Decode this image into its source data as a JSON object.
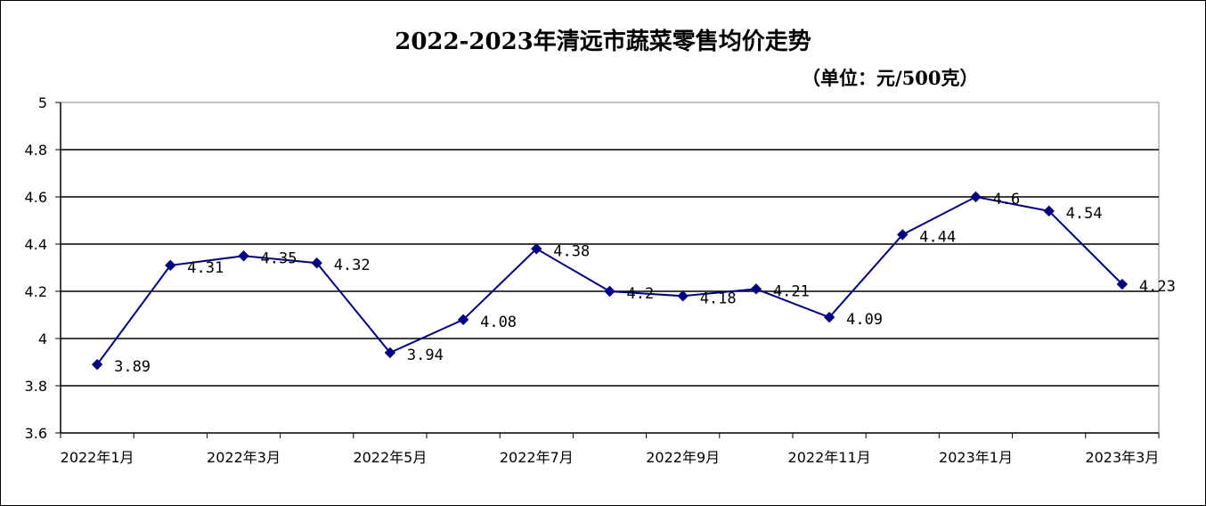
{
  "chart_data": {
    "type": "line",
    "title": "2022-2023年清远市蔬菜零售均价走势",
    "subtitle": "（单位：元/500克）",
    "ylim": [
      3.6,
      5
    ],
    "yticks": [
      "3.6",
      "3.8",
      "4",
      "4.2",
      "4.4",
      "4.6",
      "4.8",
      "5"
    ],
    "grid": true,
    "legend": "none",
    "xticks": [
      "2022年1月",
      "2022年3月",
      "2022年5月",
      "2022年7月",
      "2022年9月",
      "2022年11月",
      "2023年1月",
      "2023年3月"
    ],
    "x": [
      "2022年1月",
      "2022年2月",
      "2022年3月",
      "2022年4月",
      "2022年5月",
      "2022年6月",
      "2022年7月",
      "2022年8月",
      "2022年9月",
      "2022年10月",
      "2022年11月",
      "2022年12月",
      "2023年1月",
      "2023年2月",
      "2023年3月"
    ],
    "values": [
      3.89,
      4.31,
      4.35,
      4.32,
      3.94,
      4.08,
      4.38,
      4.2,
      4.18,
      4.21,
      4.09,
      4.44,
      4.6,
      4.54,
      4.23
    ],
    "labels": [
      "3.89",
      "4.31",
      "4.35",
      "4.32",
      "3.94",
      "4.08",
      "4.38",
      "4.2",
      "4.18",
      "4.21",
      "4.09",
      "4.44",
      "4.6",
      "4.54",
      "4.23"
    ],
    "line_color": "#000080"
  }
}
